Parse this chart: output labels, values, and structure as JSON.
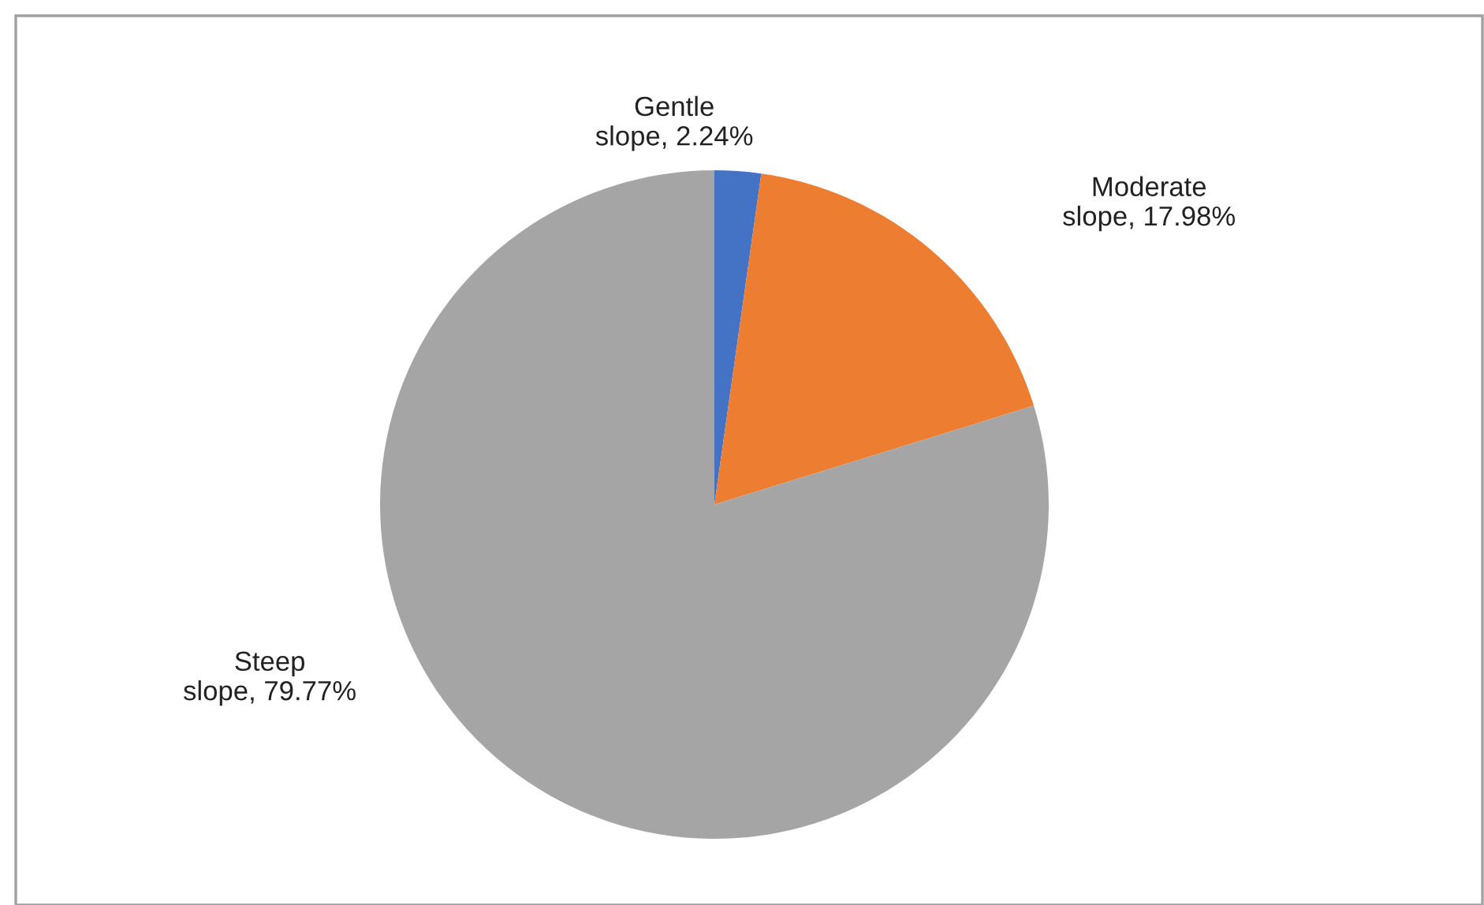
{
  "chart_data": {
    "type": "pie",
    "categories": [
      "Gentle slope",
      "Moderate slope",
      "Steep slope"
    ],
    "values": [
      2.24,
      17.98,
      79.77
    ],
    "value_labels": [
      "2.24%",
      "17.98%",
      "79.77%"
    ],
    "colors": [
      "#4472c4",
      "#ed7d31",
      "#a5a5a5"
    ],
    "legend": false
  }
}
